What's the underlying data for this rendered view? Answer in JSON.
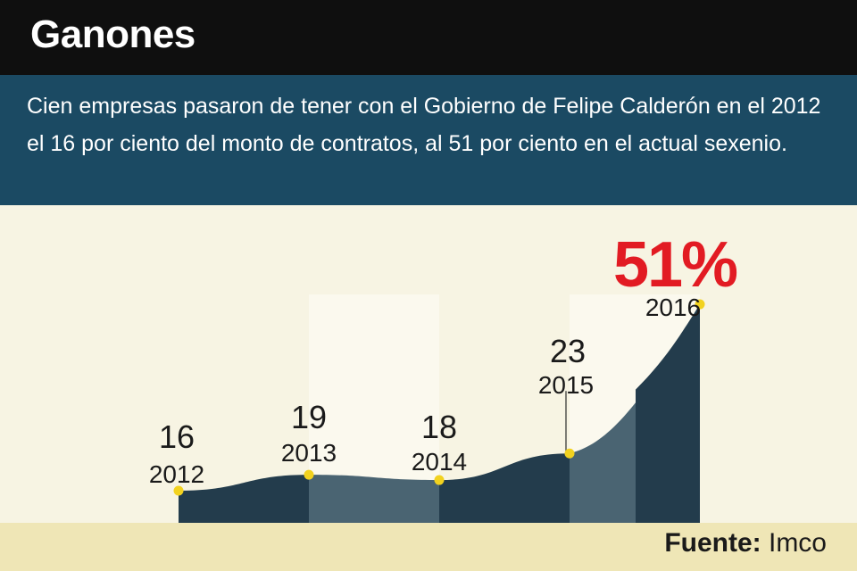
{
  "header": {
    "title": "Ganones",
    "description": "Cien empresas pasaron de tener con el Gobierno de Felipe Calderón en el 2012 el 16 por ciento del monto de contratos, al 51 por ciento en el actual sexenio."
  },
  "footer": {
    "source_label": "Fuente:",
    "source_value": "Imco"
  },
  "colors": {
    "header_bg": "#0f0f0f",
    "subhead_bg": "#1b4a63",
    "chart_bg": "#f7f4e3",
    "footer_bg": "#efe6b6",
    "area_dark": "#233c4c",
    "area_light": "#4a6472",
    "marker": "#f2d21f",
    "highlight": "#e21b23"
  },
  "chart_data": {
    "type": "area",
    "x": [
      "2012",
      "2013",
      "2014",
      "2015",
      "2016"
    ],
    "values": [
      16,
      19,
      18,
      23,
      51
    ],
    "value_labels": [
      "16",
      "19",
      "18",
      "23",
      "51%"
    ],
    "unit": "%",
    "highlight_index": 4,
    "title": "",
    "xlabel": "",
    "ylabel": ""
  }
}
